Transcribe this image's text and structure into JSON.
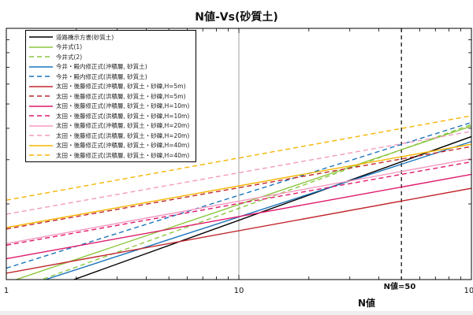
{
  "chart_data": {
    "type": "line",
    "title": "N値-Vs(砂質土)",
    "xlabel": "N値",
    "ylabel": "",
    "xscale": "log",
    "yscale": "log",
    "xlim": [
      1,
      100
    ],
    "ylim": [
      100,
      1000
    ],
    "x_ticks": [
      "1",
      "10",
      "100"
    ],
    "grid": false,
    "legend_position": "top-left",
    "reference_lines": [
      {
        "x": 10,
        "style": "solid",
        "color": "#888888"
      },
      {
        "x": 50,
        "style": "dashed",
        "color": "#000000",
        "label": "N値=50"
      }
    ],
    "series": [
      {
        "name": "道路橋示方書(砂質土)",
        "color": "#000000",
        "dash": false,
        "coef": 80,
        "exp": 0.333
      },
      {
        "name": "今井式(1)",
        "color": "#8cc63f",
        "dash": false,
        "coef": 97,
        "exp": 0.312
      },
      {
        "name": "今井式(2)",
        "color": "#8cc63f",
        "dash": true,
        "coef": 89,
        "exp": 0.334
      },
      {
        "name": "今井・殿内修正式(沖積層, 砂質土)",
        "color": "#1c75bc",
        "dash": false,
        "coef": 89,
        "exp": 0.3
      },
      {
        "name": "今井・殿内修正式(洪積層, 砂質土)",
        "color": "#1c75bc",
        "dash": true,
        "coef": 111,
        "exp": 0.29
      },
      {
        "name": "太田・後藤修正式(沖積層, 砂質土・砂礫,H=5m)",
        "color": "#c1272d",
        "dash": false,
        "coef": 106,
        "exp": 0.169
      },
      {
        "name": "太田・後藤修正式(洪積層, 砂質土・砂礫,H=5m)",
        "color": "#c1272d",
        "dash": true,
        "coef": 159,
        "exp": 0.164
      },
      {
        "name": "太田・後藤修正式(沖積層, 砂質土・砂礫,H=10m)",
        "color": "#e0196b",
        "dash": false,
        "coef": 121,
        "exp": 0.168
      },
      {
        "name": "太田・後藤修正式(洪積層, 砂質土・砂礫,H=10m)",
        "color": "#e0196b",
        "dash": true,
        "coef": 137,
        "exp": 0.166
      },
      {
        "name": "太田・後藤修正式(沖積層, 砂質土・砂礫,H=20m)",
        "color": "#f49ac1",
        "dash": false,
        "coef": 139,
        "exp": 0.169
      },
      {
        "name": "太田・後藤修正式(洪積層, 砂質土・砂礫,H=20m)",
        "color": "#f49ac1",
        "dash": true,
        "coef": 182,
        "exp": 0.165
      },
      {
        "name": "太田・後藤修正式(沖積層, 砂質土・砂礫,H=40m)",
        "color": "#f7b500",
        "dash": false,
        "coef": 161,
        "exp": 0.166
      },
      {
        "name": "太田・後藤修正式(洪積層, 砂質土・砂礫,H=40m)",
        "color": "#f7b500",
        "dash": true,
        "coef": 207,
        "exp": 0.168
      }
    ]
  }
}
